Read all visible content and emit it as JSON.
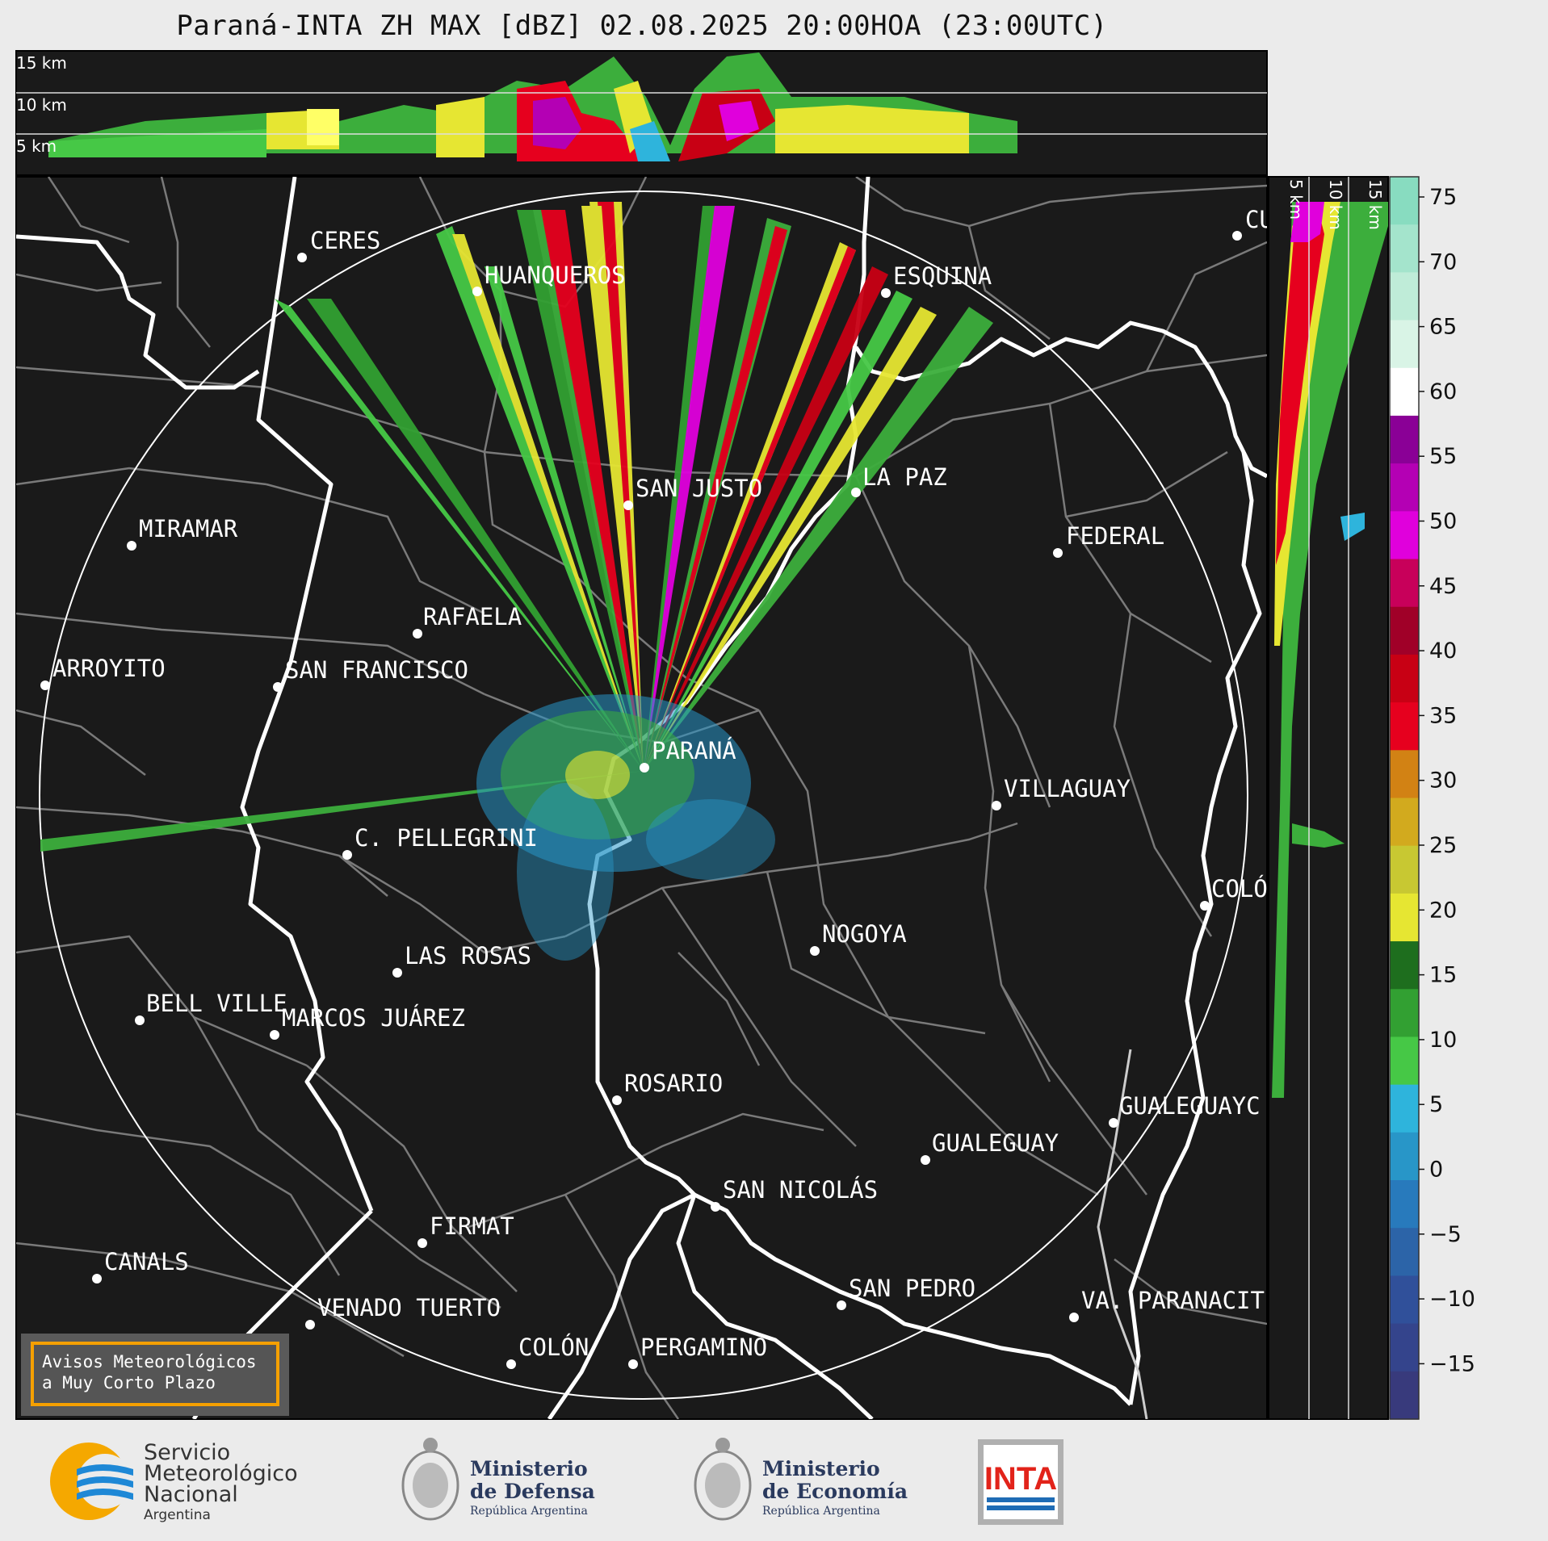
{
  "title": "Paraná-INTA ZH MAX [dBZ] 02.08.2025 20:00HOA (23:00UTC)",
  "top_panel": {
    "height_labels": [
      "15 km",
      "10 km",
      "5 km"
    ]
  },
  "side_panel": {
    "height_labels": [
      "5 km",
      "10 km",
      "15 km"
    ]
  },
  "cities": [
    {
      "name": "CERES"
    },
    {
      "name": "HUANQUEROS"
    },
    {
      "name": "ESQUINA"
    },
    {
      "name": "CU"
    },
    {
      "name": "SAN JUSTO"
    },
    {
      "name": "LA PAZ"
    },
    {
      "name": "MIRAMAR"
    },
    {
      "name": "FEDERAL"
    },
    {
      "name": "RAFAELA"
    },
    {
      "name": "ARROYITO"
    },
    {
      "name": "SAN FRANCISCO"
    },
    {
      "name": "PARANÁ"
    },
    {
      "name": "VILLAGUAY"
    },
    {
      "name": "C. PELLEGRINI"
    },
    {
      "name": "COLÓ"
    },
    {
      "name": "NOGOYA"
    },
    {
      "name": "LAS ROSAS"
    },
    {
      "name": "BELL VILLE"
    },
    {
      "name": "MARCOS JUÁREZ"
    },
    {
      "name": "ROSARIO"
    },
    {
      "name": "GUALEGUAYC"
    },
    {
      "name": "GUALEGUAY"
    },
    {
      "name": "SAN NICOLÁS"
    },
    {
      "name": "FIRMAT"
    },
    {
      "name": "CANALS"
    },
    {
      "name": "SAN PEDRO"
    },
    {
      "name": "VA. PARANACIT"
    },
    {
      "name": "VENADO TUERTO"
    },
    {
      "name": "COLÓN"
    },
    {
      "name": "PERGAMINO"
    }
  ],
  "colorbar": {
    "ticks": [
      "75",
      "70",
      "65",
      "60",
      "55",
      "50",
      "45",
      "40",
      "35",
      "30",
      "25",
      "20",
      "15",
      "10",
      "5",
      "0",
      "−5",
      "−10",
      "−15"
    ],
    "colors": [
      "#88dcc0",
      "#a4e4cc",
      "#bfecd8",
      "#d9f4e6",
      "#ffffff",
      "#8a0096",
      "#b400b4",
      "#e000dc",
      "#c8005a",
      "#a00028",
      "#c80014",
      "#e6001e",
      "#d28214",
      "#d2aa1e",
      "#c8c832",
      "#e6e632",
      "#1e6e1e",
      "#32a032",
      "#46c846",
      "#2eb4dc",
      "#2896c8",
      "#287abc",
      "#2c64a8",
      "#30509a",
      "#34448c",
      "#383a7c"
    ]
  },
  "alerts_box": {
    "line1": "Avisos Meteorológicos",
    "line2": "a Muy Corto Plazo"
  },
  "logos": {
    "smn": {
      "line1": "Servicio",
      "line2": "Meteorológico",
      "line3": "Nacional",
      "line4": "Argentina"
    },
    "defensa": {
      "line1": "Ministerio",
      "line2": "de Defensa",
      "line3": "República Argentina"
    },
    "economia": {
      "line1": "Ministerio",
      "line2": "de Economía",
      "line3": "República Argentina"
    },
    "inta": {
      "text": "INTA"
    }
  }
}
